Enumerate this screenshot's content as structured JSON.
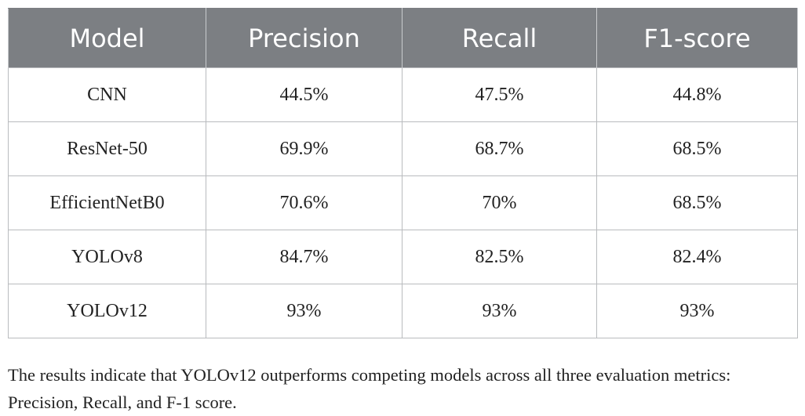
{
  "table": {
    "headers": [
      "Model",
      "Precision",
      "Recall",
      "F1-score"
    ],
    "rows": [
      [
        "CNN",
        "44.5%",
        "47.5%",
        "44.8%"
      ],
      [
        "ResNet-50",
        "69.9%",
        "68.7%",
        "68.5%"
      ],
      [
        "EfficientNetB0",
        "70.6%",
        "70%",
        "68.5%"
      ],
      [
        "YOLOv8",
        "84.7%",
        "82.5%",
        "82.4%"
      ],
      [
        "YOLOv12",
        "93%",
        "93%",
        "93%"
      ]
    ]
  },
  "footnote": "The results indicate that YOLOv12 outperforms competing models across all three evaluation metrics: Precision, Recall, and F-1 score."
}
